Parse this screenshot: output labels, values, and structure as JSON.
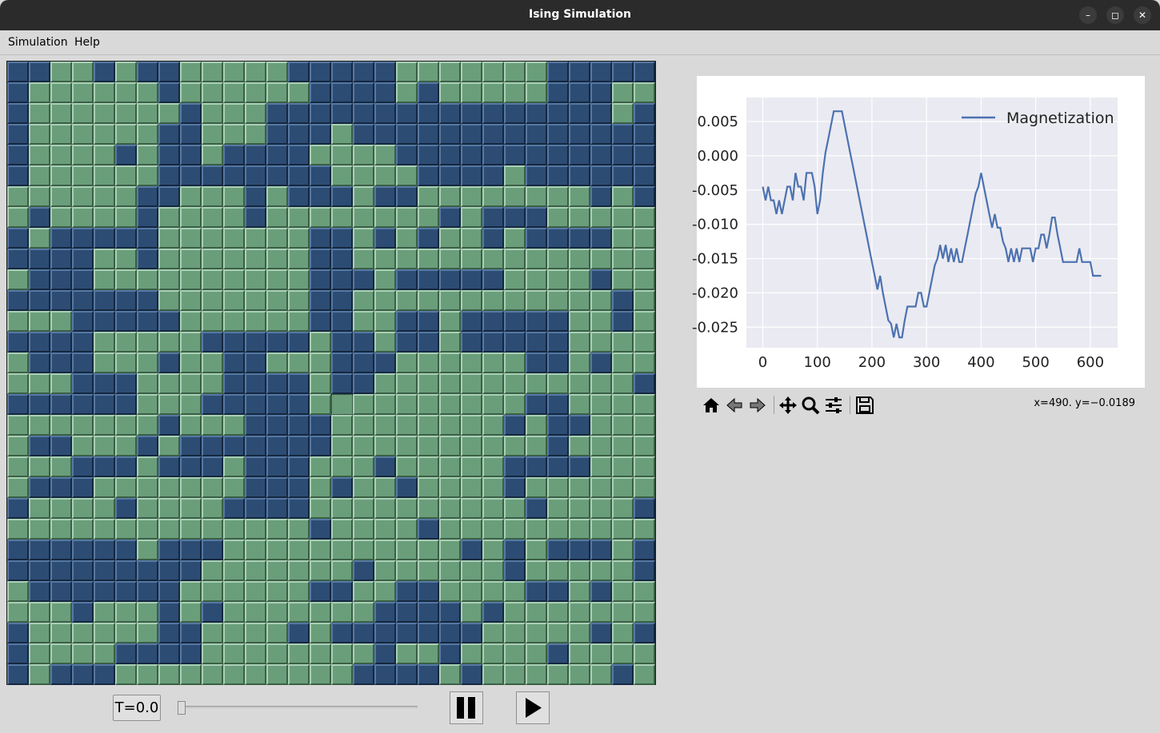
{
  "window": {
    "title": "Ising Simulation"
  },
  "menu": {
    "items": [
      "Simulation",
      "Help"
    ]
  },
  "lattice": {
    "rows": 30,
    "cols": 30,
    "selected_cell": [
      16,
      15
    ],
    "colors": {
      "up": "#6a9e7b",
      "down": "#2c4c74"
    },
    "grid": [
      "DDUUDUDDUUUUUDDDDDUUUUUUUDDDDD",
      "DUUUUUUDUUUUUUDDDDUDUUUUUDDDUU",
      "DUUUUUUUDUUUDDDDDDDDDDDDDDDDUD",
      "DUUUUUUDDUUUDDDUDDDDDDDDDDDDDD",
      "DUUUUDUDDUDDDDUUUUDDDDDDDDDDDD",
      "DUUUUUUDDDDDDDDUUUUDDDDUDDDDDD",
      "UUUUUUDDUUUDUDDDUDDUUUUUUUUDUD",
      "UDUUUUDUUUUDUUUUUUUUDUDDDUUUUU",
      "DUDDDDDUUUUUUUDDUDUDUUDUDDDDUU",
      "DDDDUUDUUUUUUUDDUUUUUUUUUUUUUU",
      "UDDDUUUUUUUUUUDDDUDDDDDUUUUDUU",
      "DDDDDDDUUUUUUUDDUUUUUUUUUUUUDU",
      "UUUDDDDDUUUUUUDDUUDDUDDDDDUUDU",
      "DDDDUUUUUDDDDDUDDUDDUDDDDDUUUU",
      "UDDDUUUDUUDDUUUDDDUUUUUUDDUDUU",
      "UUUDDDUUUUDDDDUDDUUUUUUUUUUUUD",
      "DDDDDDUUUDDDDDUUUUUUUUUUDDUUUU",
      "UUUUUUUDUUUDDDDUUUUUUUUDUDDUUU",
      "UDDUUUDUDDDDDDDUUUUUUUUUUDUUUU",
      "UUUDDDUDDDUDDDUUUDUUUUUDDDDUUU",
      "UDDDUUUUUUUDDDUDUUDUUUUDUUUUUU",
      "DUUUUDUUUUDDDDUUUUUUUUUUDUUUUD",
      "UUUUUUUUUUUUUUDUUUUDUUUUUUUUUU",
      "DDDDDDUDDDUUUUUUUUUUUDUDUDDDUD",
      "DDDDDDDDDUUUUUUUDUUUUUUDUUUUUD",
      "UDDDDDDDUUUUUUDDUUDDUUUUDDUDUU",
      "UUUDUUUDUDUUUUUUUDDDDUDUUUUUUU",
      "DUUUUUUDDUUUUDUDDDDDDDUUUUUDUD",
      "DUUUUDDDDUUUUUUUUDUUDUUUUDUUUU",
      "DUDDDUUUUUUUUUUUDDDDUDUUUUUUDU"
    ]
  },
  "controls": {
    "temperature_label": "T=0.0",
    "temperature_slider": 0.0,
    "pause_icon": "pause-icon",
    "play_icon": "play-icon"
  },
  "chart_data": {
    "type": "line",
    "series": [
      {
        "name": "Magnetization",
        "color": "#4c72b0",
        "x": [
          0,
          5,
          10,
          15,
          20,
          25,
          30,
          35,
          40,
          45,
          50,
          55,
          60,
          65,
          70,
          75,
          80,
          85,
          90,
          95,
          100,
          105,
          110,
          115,
          120,
          125,
          130,
          135,
          140,
          145,
          150,
          155,
          160,
          165,
          170,
          175,
          180,
          185,
          190,
          195,
          200,
          205,
          210,
          215,
          220,
          225,
          230,
          235,
          240,
          245,
          250,
          255,
          260,
          265,
          270,
          275,
          280,
          285,
          290,
          295,
          300,
          305,
          310,
          315,
          320,
          325,
          330,
          335,
          340,
          345,
          350,
          355,
          360,
          365,
          370,
          375,
          380,
          385,
          390,
          395,
          400,
          405,
          410,
          415,
          420,
          425,
          430,
          435,
          440,
          445,
          450,
          455,
          460,
          465,
          470,
          475,
          480,
          485,
          490,
          495,
          500,
          505,
          510,
          515,
          520,
          525,
          530,
          535,
          540,
          545,
          550,
          555,
          560,
          565,
          570,
          575,
          580,
          585,
          590,
          595,
          600,
          605,
          610,
          615,
          620
        ],
        "y": [
          -0.0045,
          -0.0065,
          -0.0045,
          -0.0065,
          -0.0065,
          -0.0085,
          -0.0065,
          -0.0085,
          -0.0065,
          -0.0045,
          -0.0045,
          -0.0065,
          -0.0025,
          -0.0045,
          -0.0045,
          -0.0065,
          -0.0025,
          -0.0025,
          -0.0025,
          -0.0045,
          -0.0085,
          -0.0065,
          -0.0025,
          0.0005,
          0.0025,
          0.0045,
          0.0065,
          0.0065,
          0.0065,
          0.0065,
          0.0045,
          0.0025,
          0.0005,
          -0.0015,
          -0.0035,
          -0.0055,
          -0.0075,
          -0.0095,
          -0.0115,
          -0.0135,
          -0.0155,
          -0.0175,
          -0.0195,
          -0.0175,
          -0.02,
          -0.022,
          -0.024,
          -0.0245,
          -0.0265,
          -0.0245,
          -0.0265,
          -0.0265,
          -0.024,
          -0.022,
          -0.022,
          -0.022,
          -0.022,
          -0.02,
          -0.02,
          -0.022,
          -0.022,
          -0.02,
          -0.018,
          -0.016,
          -0.015,
          -0.013,
          -0.015,
          -0.013,
          -0.0155,
          -0.0135,
          -0.0155,
          -0.0135,
          -0.0155,
          -0.0155,
          -0.0135,
          -0.0115,
          -0.0095,
          -0.0075,
          -0.0055,
          -0.0045,
          -0.0025,
          -0.0045,
          -0.0065,
          -0.0085,
          -0.0105,
          -0.0085,
          -0.0105,
          -0.0105,
          -0.0125,
          -0.0135,
          -0.0155,
          -0.0135,
          -0.0155,
          -0.0135,
          -0.0155,
          -0.0135,
          -0.0135,
          -0.0135,
          -0.0135,
          -0.0155,
          -0.0135,
          -0.0135,
          -0.0115,
          -0.0115,
          -0.0135,
          -0.0115,
          -0.009,
          -0.009,
          -0.0115,
          -0.0135,
          -0.0155,
          -0.0155,
          -0.0155,
          -0.0155,
          -0.0155,
          -0.0155,
          -0.0135,
          -0.0155,
          -0.0155,
          -0.0155,
          -0.0155,
          -0.0175,
          -0.0175,
          -0.0175,
          -0.0175
        ]
      }
    ],
    "xlim": [
      -30,
      650
    ],
    "ylim": [
      -0.028,
      0.0085
    ],
    "xticks": [
      "0",
      "100",
      "200",
      "300",
      "400",
      "500",
      "600"
    ],
    "yticks": [
      "0.005",
      "0.000",
      "-0.005",
      "-0.010",
      "-0.015",
      "-0.020",
      "-0.025"
    ],
    "grid": true,
    "legend": "top-right",
    "style": {
      "plot_bg": "#eaeaf2",
      "grid_color": "#ffffff"
    }
  },
  "plot_toolbar": {
    "icons": [
      "home-icon",
      "back-icon",
      "forward-icon",
      "pan-icon",
      "zoom-icon",
      "configure-icon",
      "save-icon"
    ],
    "coords": "x=490. y=−0.0189"
  }
}
